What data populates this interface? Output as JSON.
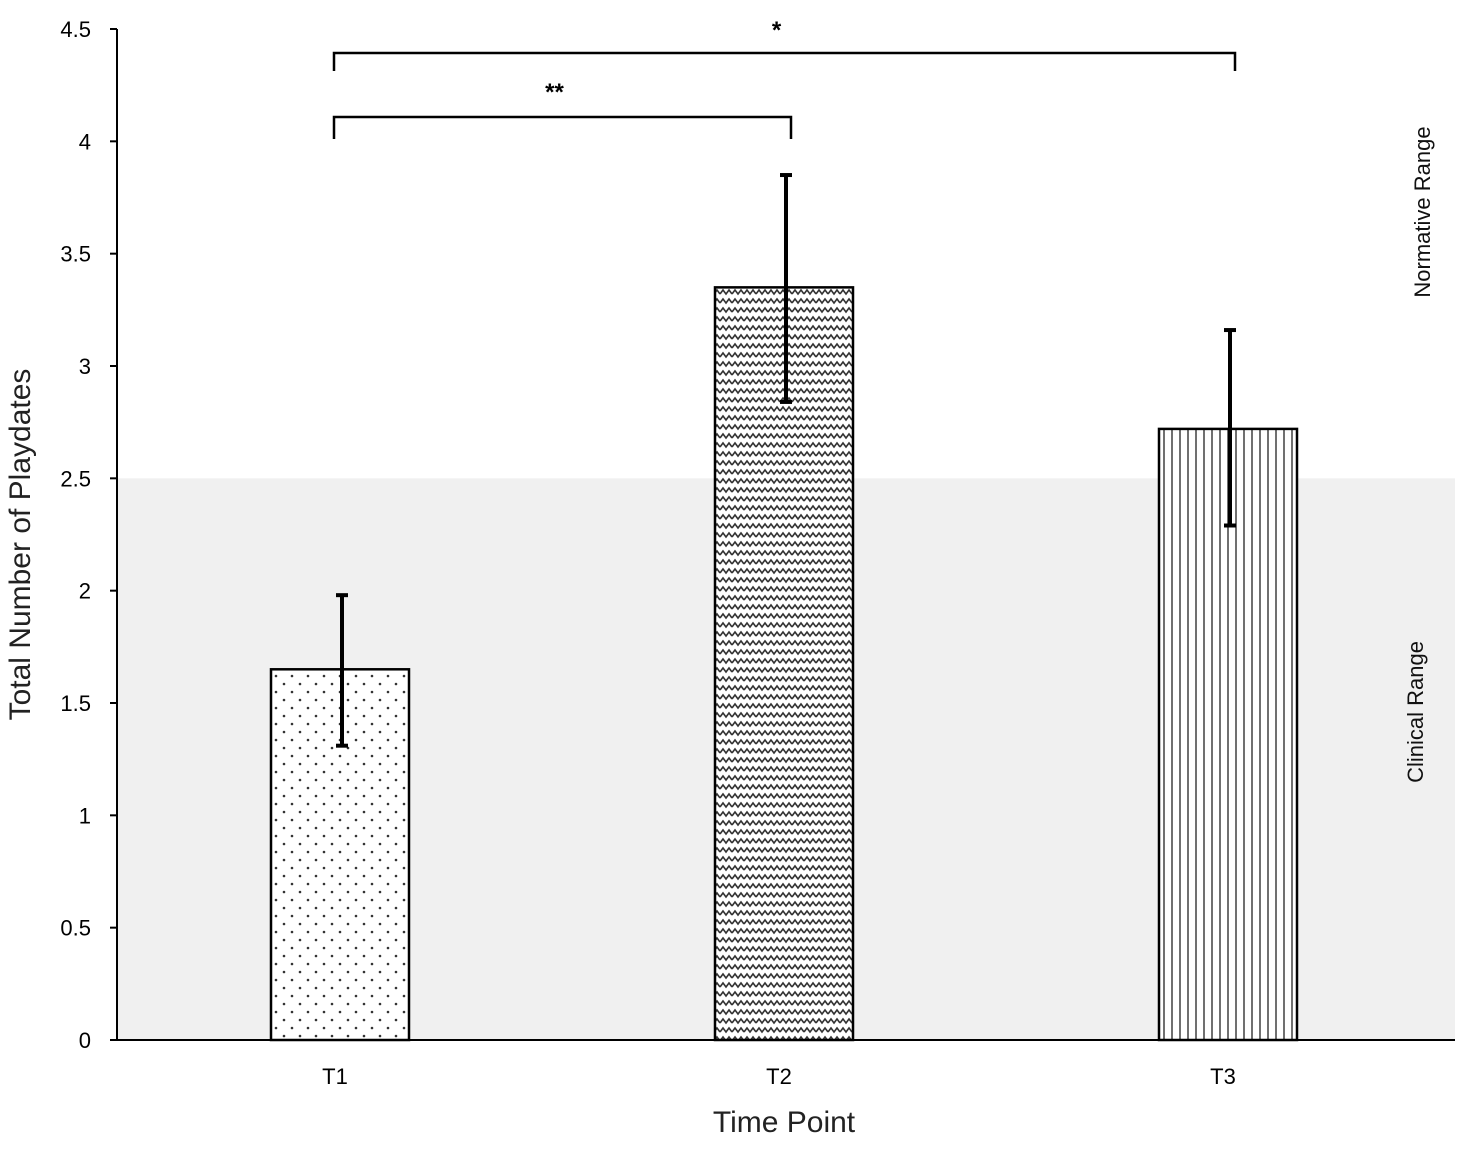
{
  "chart_data": {
    "type": "bar",
    "title": "",
    "xlabel": "Time Point",
    "ylabel": "Total Number of Playdates",
    "ylim": [
      0,
      4.5
    ],
    "yticks": [
      0,
      0.5,
      1,
      1.5,
      2,
      2.5,
      3,
      3.5,
      4,
      4.5
    ],
    "ytick_labels": [
      "0",
      "0.5",
      "1",
      "1.5",
      "2",
      "2.5",
      "3",
      "3.5",
      "4",
      "4.5"
    ],
    "categories": [
      "T1",
      "T2",
      "T3"
    ],
    "values": [
      1.65,
      3.35,
      2.72
    ],
    "error_low": [
      1.31,
      2.84,
      2.29
    ],
    "error_high": [
      1.98,
      3.85,
      3.16
    ],
    "patterns": [
      "dots",
      "zigzag",
      "vertical-lines"
    ],
    "grid": false,
    "legend": "none",
    "clinical_band": {
      "from": 0,
      "to": 2.5,
      "color": "#f0f0f0"
    },
    "range_labels": {
      "normative": "Normative Range",
      "clinical": "Clinical Range"
    },
    "significance": [
      {
        "from": "T1",
        "to": "T2",
        "label": "**"
      },
      {
        "from": "T1",
        "to": "T3",
        "label": "*"
      }
    ]
  }
}
